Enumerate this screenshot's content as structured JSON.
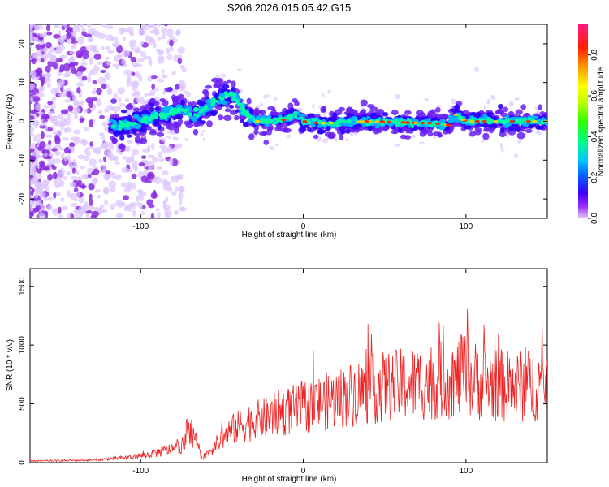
{
  "title": "S206.2026.015.05.42.G15",
  "chart_data": [
    {
      "type": "heatmap",
      "xlabel": "Height of straight line (km)",
      "ylabel": "Frequency (Hz)",
      "xlim": [
        -168,
        150
      ],
      "ylim": [
        -25,
        25
      ],
      "xticks": [
        -100,
        0,
        100
      ],
      "yticks": [
        -20,
        -10,
        0,
        10,
        20
      ],
      "colorbar": {
        "label": "Normalized spectral amplitude",
        "ticks": [
          "0.0",
          "0.2",
          "0.4",
          "0.6",
          "0.8"
        ],
        "tick_values": [
          0.0,
          0.2,
          0.4,
          0.6,
          0.8
        ],
        "range": [
          0,
          0.95
        ]
      },
      "ridge": {
        "x": [
          -115,
          -105,
          -95,
          -85,
          -75,
          -65,
          -55,
          -45,
          -40,
          -35,
          -30,
          -20,
          -10,
          -5,
          0,
          10,
          40,
          80,
          90,
          93,
          100,
          120,
          150
        ],
        "y": [
          -1,
          -1,
          1,
          2,
          3,
          2,
          5,
          7,
          5,
          2,
          0,
          0,
          0.5,
          2,
          0,
          -0.5,
          0,
          -0.5,
          -1,
          2,
          0,
          0,
          0
        ]
      }
    },
    {
      "type": "line",
      "xlabel": "Height of straight line (km)",
      "ylabel": "SNR (10 * v/v)",
      "xlim": [
        -168,
        150
      ],
      "ylim": [
        0,
        1650
      ],
      "xticks": [
        -100,
        0,
        100
      ],
      "yticks": [
        0,
        500,
        1000,
        1500
      ],
      "color": "#ee2222",
      "envelope": {
        "x": [
          -168,
          -130,
          -110,
          -95,
          -85,
          -75,
          -70,
          -68,
          -62,
          -55,
          -45,
          -35,
          -25,
          -15,
          0,
          20,
          35,
          50,
          70,
          90,
          100,
          110,
          130,
          150
        ],
        "y": [
          20,
          30,
          60,
          100,
          150,
          200,
          300,
          250,
          60,
          200,
          400,
          500,
          550,
          620,
          700,
          800,
          900,
          950,
          1000,
          1050,
          1100,
          1000,
          950,
          1000
        ]
      }
    }
  ]
}
